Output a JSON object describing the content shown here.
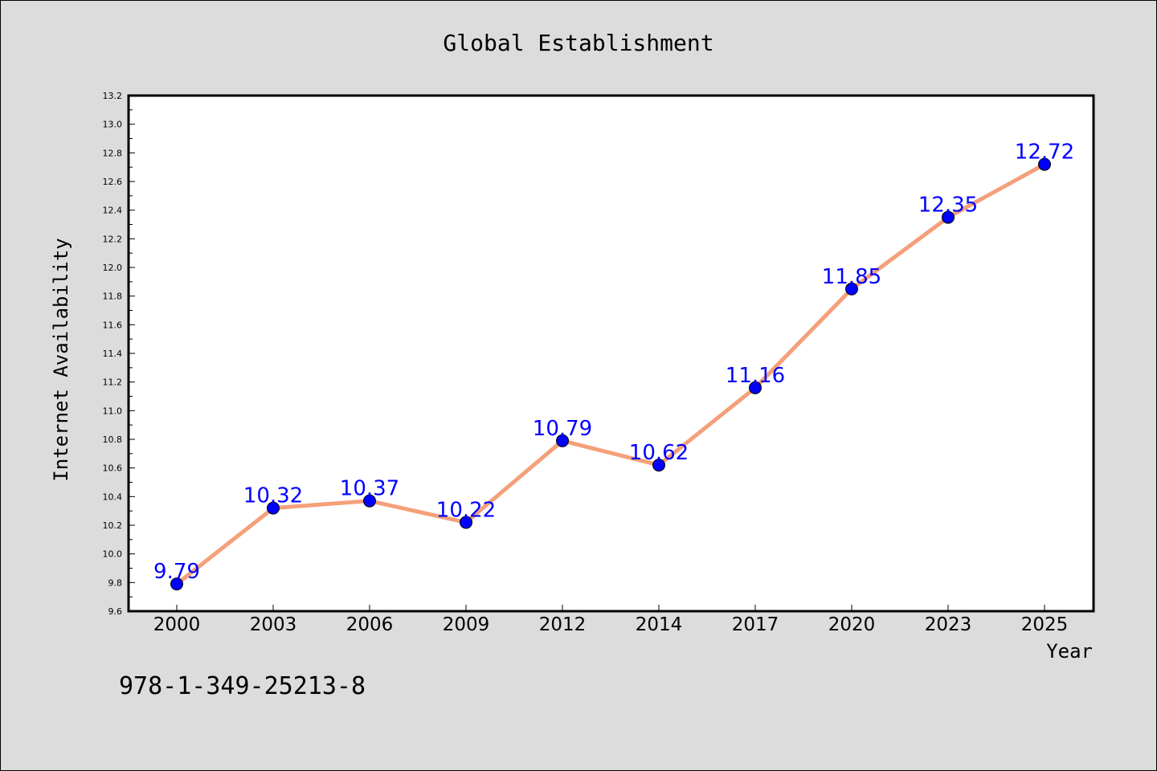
{
  "chart_data": {
    "type": "line",
    "title": "Global Establishment",
    "xlabel": "Year",
    "ylabel": "Internet Availability",
    "categories": [
      "2000",
      "2003",
      "2006",
      "2009",
      "2012",
      "2014",
      "2017",
      "2020",
      "2023",
      "2025"
    ],
    "series": [
      {
        "values": [
          9.79,
          10.32,
          10.37,
          10.22,
          10.79,
          10.62,
          11.16,
          11.85,
          12.35,
          12.72
        ],
        "labels": [
          "9.79",
          "10.32",
          "10.37",
          "10.22",
          "10.79",
          "10.62",
          "11.16",
          "11.85",
          "12.35",
          "12.72"
        ],
        "line_color": "#f4a07a",
        "marker_color": "#0000ff"
      }
    ],
    "ylim": [
      9.6,
      13.2
    ],
    "yticks": [
      "9.6",
      "9.8",
      "10.0",
      "10.2",
      "10.4",
      "10.6",
      "10.8",
      "11.0",
      "11.2",
      "11.4",
      "11.6",
      "11.8",
      "12.0",
      "12.2",
      "12.4",
      "12.6",
      "12.8",
      "13.0",
      "13.2"
    ],
    "grid": false,
    "legend": "none"
  },
  "annotation": "978-1-349-25213-8"
}
